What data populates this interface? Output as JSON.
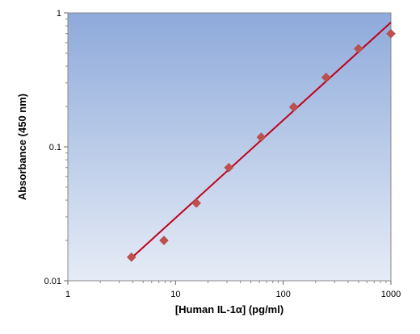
{
  "chart_data": {
    "type": "scatter",
    "title": "",
    "xlabel": "[Human IL-1α] (pg/ml)",
    "ylabel": "Absorbance (450 nm)",
    "x_scale": "log",
    "y_scale": "log",
    "xlim": [
      1,
      1000
    ],
    "ylim": [
      0.01,
      1
    ],
    "x_ticks": [
      {
        "value": 1,
        "label": "1"
      },
      {
        "value": 10,
        "label": "10"
      },
      {
        "value": 100,
        "label": "100"
      },
      {
        "value": 1000,
        "label": "1000"
      }
    ],
    "y_ticks": [
      {
        "value": 0.01,
        "label": "0.01"
      },
      {
        "value": 0.1,
        "label": "0.1"
      },
      {
        "value": 1,
        "label": "1"
      }
    ],
    "grid": false,
    "legend": "none",
    "series": [
      {
        "kind": "points",
        "marker": "diamond",
        "color": "#C0504D",
        "points": [
          {
            "x": 3.9,
            "y": 0.015
          },
          {
            "x": 7.8,
            "y": 0.02
          },
          {
            "x": 15.6,
            "y": 0.038
          },
          {
            "x": 31.25,
            "y": 0.07
          },
          {
            "x": 62.5,
            "y": 0.118
          },
          {
            "x": 125,
            "y": 0.198
          },
          {
            "x": 250,
            "y": 0.33
          },
          {
            "x": 500,
            "y": 0.54
          },
          {
            "x": 1000,
            "y": 0.7
          }
        ]
      },
      {
        "kind": "fit-line",
        "color": "#C0001A",
        "points": [
          {
            "x": 3.9,
            "y": 0.0148
          },
          {
            "x": 1000,
            "y": 0.85
          }
        ]
      }
    ]
  },
  "colors": {
    "plot_bg_top": "#8EAADB",
    "plot_bg_bottom": "#E6ECF6",
    "marker": "#C0504D",
    "fit_line": "#C0001A"
  }
}
